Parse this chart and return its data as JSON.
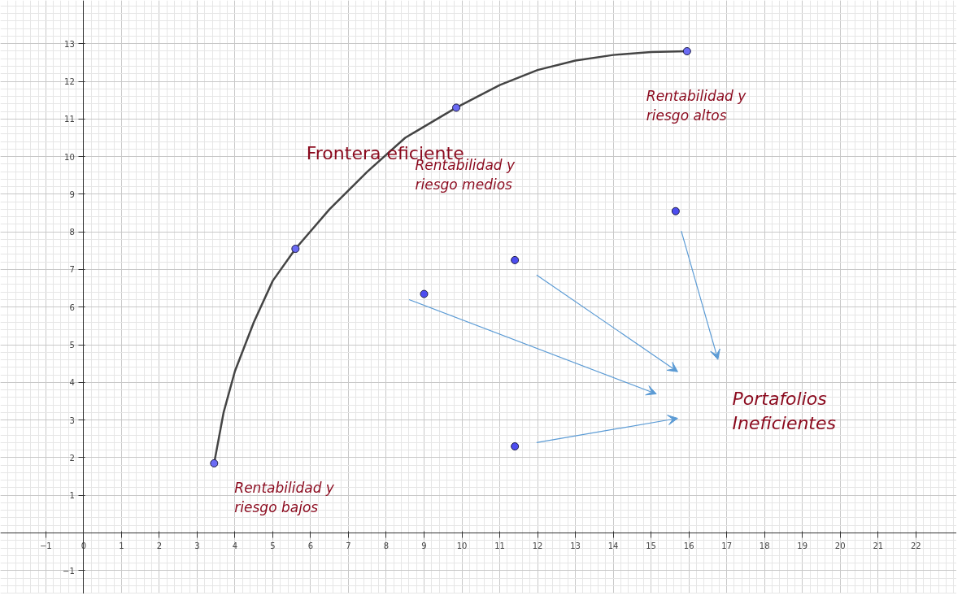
{
  "chart_data": {
    "type": "line",
    "series": [
      {
        "color": "#444444",
        "marker": "none",
        "x": [
          3.45,
          3.7,
          4.0,
          4.5,
          5.0,
          5.6,
          6.5,
          7.5,
          8.5,
          9.85,
          11,
          12,
          13,
          14,
          15,
          15.95
        ],
        "values": [
          1.85,
          3.2,
          4.3,
          5.6,
          6.7,
          7.55,
          8.6,
          9.6,
          10.5,
          11.3,
          11.9,
          12.3,
          12.55,
          12.7,
          12.78,
          12.8
        ]
      },
      {
        "type": "scatter",
        "color": "#6b6bf5",
        "marker": "circle",
        "x": [
          3.45,
          5.6,
          9.85,
          15.95
        ],
        "values": [
          1.85,
          7.55,
          11.3,
          12.8
        ]
      },
      {
        "type": "scatter",
        "color": "#4d4df0",
        "marker": "circle",
        "x": [
          9.0,
          11.4,
          15.65,
          11.4
        ],
        "values": [
          6.35,
          7.25,
          8.55,
          2.3
        ]
      }
    ],
    "annotations": [
      {
        "text": "Frontera eficiente",
        "x": 7.5,
        "y": 9.6
      },
      "Rentabilidad y\nriesgo medios",
      {
        "text": "Rentabilidad y\nriesgo altos",
        "x": 15.95,
        "y": 12.8
      },
      {
        "text": "Rentabilidad y\nriesgo bajos",
        "x": 3.45,
        "y": 1.85
      },
      "Portafolios\nIneficientes"
    ],
    "xlim": [
      -2.2,
      23.08
    ],
    "ylim": [
      -1.62,
      14.15
    ],
    "xticks": [
      -1,
      0,
      1,
      2,
      3,
      4,
      5,
      6,
      7,
      8,
      9,
      10,
      11,
      12,
      13,
      14,
      15,
      16,
      17,
      18,
      19,
      20,
      21,
      22
    ],
    "yticks": [
      -1,
      1,
      2,
      3,
      4,
      5,
      6,
      7,
      8,
      9,
      10,
      11,
      12,
      13
    ],
    "grid": true
  }
}
